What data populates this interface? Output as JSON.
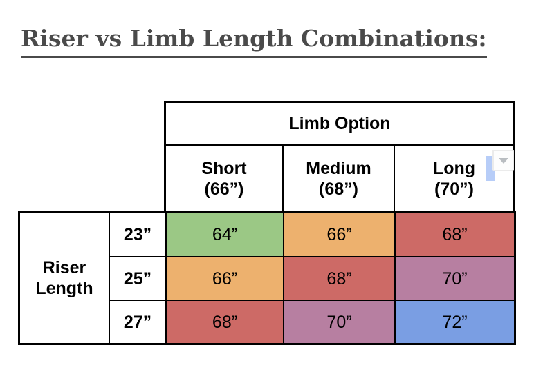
{
  "title": {
    "text": "Riser vs Limb Length Combinations:",
    "color": "#4a4a4a"
  },
  "colors": {
    "green": "#9bc885",
    "orange": "#edb16e",
    "red": "#cd6a66",
    "purple": "#b77fa1",
    "blue": "#7a9ee3",
    "grid_border": "#000000",
    "selection_highlight": "#b7cdf8",
    "dropdown_arrow": "#b9bdc1"
  },
  "table": {
    "limb_header": "Limb Option",
    "columns": [
      {
        "label": "Short",
        "size": "(66”)"
      },
      {
        "label": "Medium",
        "size": "(68”)"
      },
      {
        "label": "Long",
        "size": "(70”)"
      }
    ],
    "riser_header": {
      "line1": "Riser",
      "line2": "Length"
    },
    "rows": [
      {
        "riser": "23”",
        "cells": [
          {
            "value": "64”",
            "color": "#9bc885"
          },
          {
            "value": "66”",
            "color": "#edb16e"
          },
          {
            "value": "68”",
            "color": "#cd6a66"
          }
        ]
      },
      {
        "riser": "25”",
        "cells": [
          {
            "value": "66”",
            "color": "#edb16e"
          },
          {
            "value": "68”",
            "color": "#cd6a66"
          },
          {
            "value": "70”",
            "color": "#b77fa1"
          }
        ]
      },
      {
        "riser": "27”",
        "cells": [
          {
            "value": "68”",
            "color": "#cd6a66"
          },
          {
            "value": "70”",
            "color": "#b77fa1"
          },
          {
            "value": "72”",
            "color": "#7a9ee3"
          }
        ]
      }
    ]
  }
}
